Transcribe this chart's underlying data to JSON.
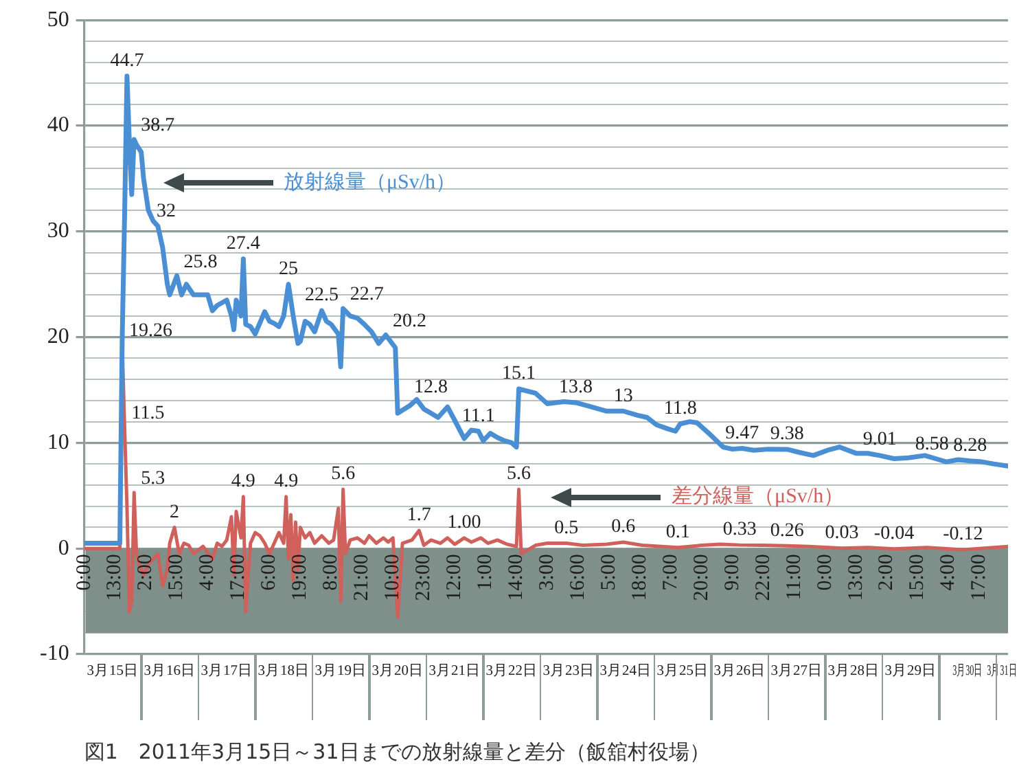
{
  "chart_data": {
    "type": "line",
    "title": "図1　2011年3月15日～31日までの放射線量と差分（飯舘村役場）",
    "xlim": [
      "--03-15T00:00",
      "--03-31T05:00"
    ],
    "xticks": [
      {
        "value": "--03-15T00:00",
        "label": "0:00"
      },
      {
        "value": "--03-15T13:00",
        "label": "13:00"
      },
      {
        "value": "--03-16T02:00",
        "label": "2:00"
      },
      {
        "value": "--03-16T15:00",
        "label": "15:00"
      },
      {
        "value": "--03-17T04:00",
        "label": "4:00"
      },
      {
        "value": "--03-17T17:00",
        "label": "17:00"
      },
      {
        "value": "--03-18T06:00",
        "label": "6:00"
      },
      {
        "value": "--03-18T19:00",
        "label": "19:00"
      },
      {
        "value": "--03-19T08:00",
        "label": "8:00"
      },
      {
        "value": "--03-19T21:00",
        "label": "21:00"
      },
      {
        "value": "--03-20T10:00",
        "label": "10:00"
      },
      {
        "value": "--03-20T23:00",
        "label": "23:00"
      },
      {
        "value": "--03-21T12:00",
        "label": "12:00"
      },
      {
        "value": "--03-22T01:00",
        "label": "1:00"
      },
      {
        "value": "--03-22T14:00",
        "label": "14:00"
      },
      {
        "value": "--03-23T03:00",
        "label": "3:00"
      },
      {
        "value": "--03-23T16:00",
        "label": "16:00"
      },
      {
        "value": "--03-24T05:00",
        "label": "5:00"
      },
      {
        "value": "--03-24T18:00",
        "label": "18:00"
      },
      {
        "value": "--03-25T07:00",
        "label": "7:00"
      },
      {
        "value": "--03-25T20:00",
        "label": "20:00"
      },
      {
        "value": "--03-26T09:00",
        "label": "9:00"
      },
      {
        "value": "--03-26T22:00",
        "label": "22:00"
      },
      {
        "value": "--03-27T11:00",
        "label": "11:00"
      },
      {
        "value": "--03-28T00:00",
        "label": "0:00"
      },
      {
        "value": "--03-28T13:00",
        "label": "13:00"
      },
      {
        "value": "--03-29T02:00",
        "label": "2:00"
      },
      {
        "value": "--03-29T15:00",
        "label": "15:00"
      },
      {
        "value": "--03-30T04:00",
        "label": "4:00"
      },
      {
        "value": "--03-30T17:00",
        "label": "17:00"
      }
    ],
    "x2lim": [
      "--03-15T00:00",
      "--03-31T05:00"
    ],
    "x2ticks": [
      {
        "value": "--03-15T12:00",
        "label": "3月15日"
      },
      {
        "value": "--03-16T12:00",
        "label": "3月16日"
      },
      {
        "value": "--03-17T12:00",
        "label": "3月17日"
      },
      {
        "value": "--03-18T12:00",
        "label": "3月18日"
      },
      {
        "value": "--03-19T12:00",
        "label": "3月19日"
      },
      {
        "value": "--03-20T12:00",
        "label": "3月20日"
      },
      {
        "value": "--03-21T12:00",
        "label": "3月21日"
      },
      {
        "value": "--03-22T12:00",
        "label": "3月22日"
      },
      {
        "value": "--03-23T12:00",
        "label": "3月23日"
      },
      {
        "value": "--03-24T12:00",
        "label": "3月24日"
      },
      {
        "value": "--03-25T12:00",
        "label": "3月25日"
      },
      {
        "value": "--03-26T12:00",
        "label": "3月26日"
      },
      {
        "value": "--03-27T12:00",
        "label": "3月27日"
      },
      {
        "value": "--03-28T12:00",
        "label": "3月28日"
      },
      {
        "value": "--03-29T12:00",
        "label": "3月29日"
      },
      {
        "value": "--03-30T12:00",
        "label": "3月30日"
      },
      {
        "value": "--03-31T02:30",
        "label": "3月31日"
      }
    ],
    "ylim": [
      -10,
      50
    ],
    "yticks": [
      -10,
      {
        "value": -8,
        "label": null
      },
      {
        "value": -6,
        "label": null
      },
      {
        "value": -4,
        "label": null
      },
      {
        "value": -2,
        "label": null
      },
      0,
      {
        "value": 2,
        "label": null
      },
      {
        "value": 4,
        "label": null
      },
      {
        "value": 6,
        "label": null
      },
      {
        "value": 8,
        "label": null
      },
      10,
      {
        "value": 12,
        "label": null
      },
      {
        "value": 14,
        "label": null
      },
      {
        "value": 16,
        "label": null
      },
      {
        "value": 18,
        "label": null
      },
      20,
      {
        "value": 22,
        "label": null
      },
      {
        "value": 24,
        "label": null
      },
      {
        "value": 26,
        "label": null
      },
      {
        "value": 28,
        "label": null
      },
      30,
      {
        "value": 32,
        "label": null
      },
      {
        "value": 34,
        "label": null
      },
      {
        "value": 36,
        "label": null
      },
      {
        "value": 38,
        "label": null
      },
      40,
      {
        "value": 42,
        "label": null
      },
      {
        "value": 44,
        "label": null
      },
      {
        "value": 46,
        "label": null
      },
      {
        "value": 48,
        "label": null
      },
      50
    ],
    "grid": "y",
    "legend": false,
    "bands": [
      {
        "axis": "y",
        "from": -8,
        "to": 0,
        "color": "#7f908a"
      }
    ],
    "series": [
      {
        "name": "放射線量（μSv/h）",
        "color": "#4a8fd3",
        "x": [
          "--03-15T00:00",
          "--03-15T15:00",
          "--03-15T16:00",
          "--03-15T17:00",
          "--03-15T18:00",
          "--03-15T19:00",
          "--03-15T20:00",
          "--03-15T21:00",
          "--03-15T22:00",
          "--03-16T00:00",
          "--03-16T01:00",
          "--03-16T03:00",
          "--03-16T05:00",
          "--03-16T07:00",
          "--03-16T09:00",
          "--03-16T11:00",
          "--03-16T12:00",
          "--03-16T15:00",
          "--03-16T17:00",
          "--03-16T19:00",
          "--03-16T22:00",
          "--03-17T04:00",
          "--03-17T06:00",
          "--03-17T08:00",
          "--03-17T12:00",
          "--03-17T14:00",
          "--03-17T15:00",
          "--03-17T16:00",
          "--03-17T18:00",
          "--03-17T19:00",
          "--03-17T20:00",
          "--03-17T22:00",
          "--03-18T00:00",
          "--03-18T04:00",
          "--03-18T06:00",
          "--03-18T08:00",
          "--03-18T10:00",
          "--03-18T12:00",
          "--03-18T14:00",
          "--03-18T15:00",
          "--03-18T16:00",
          "--03-18T18:00",
          "--03-18T19:00",
          "--03-18T21:00",
          "--03-18T23:00",
          "--03-19T01:00",
          "--03-19T04:00",
          "--03-19T06:00",
          "--03-19T08:00",
          "--03-19T11:00",
          "--03-19T12:00",
          "--03-19T13:00",
          "--03-19T16:00",
          "--03-19T19:00",
          "--03-19T22:00",
          "--03-20T01:00",
          "--03-20T04:00",
          "--03-20T07:00",
          "--03-20T09:00",
          "--03-20T11:00",
          "--03-20T12:00",
          "--03-20T17:00",
          "--03-20T20:00",
          "--03-20T23:00",
          "--03-21T02:00",
          "--03-21T05:00",
          "--03-21T09:00",
          "--03-21T13:00",
          "--03-21T16:00",
          "--03-21T19:00",
          "--03-21T22:00",
          "--03-22T00:00",
          "--03-22T03:00",
          "--03-22T06:00",
          "--03-22T09:00",
          "--03-22T12:00",
          "--03-22T14:00",
          "--03-22T15:00",
          "--03-22T22:00",
          "--03-23T03:00",
          "--03-23T10:00",
          "--03-23T15:00",
          "--03-23T20:00",
          "--03-24T04:00",
          "--03-24T11:00",
          "--03-24T17:00",
          "--03-24T21:00",
          "--03-25T01:00",
          "--03-25T06:00",
          "--03-25T09:00",
          "--03-25T11:00",
          "--03-25T15:00",
          "--03-25T18:00",
          "--03-25T23:00",
          "--03-26T05:00",
          "--03-26T09:00",
          "--03-26T13:00",
          "--03-26T18:00",
          "--03-27T00:00",
          "--03-27T08:00",
          "--03-27T13:00",
          "--03-27T19:00",
          "--03-28T01:00",
          "--03-28T06:00",
          "--03-28T13:00",
          "--03-28T18:00",
          "--03-28T23:00",
          "--03-29T05:00",
          "--03-29T11:00",
          "--03-29T18:00",
          "--03-30T00:00",
          "--03-30T03:00",
          "--03-30T08:00",
          "--03-30T13:00",
          "--03-30T18:00",
          "--03-30T23:00",
          "--03-31T05:00"
        ],
        "values": [
          0.5,
          0.5,
          20,
          31.5,
          44.7,
          38.5,
          33.5,
          38.7,
          38.2,
          37.5,
          35,
          32,
          31,
          30.5,
          28.5,
          25,
          24,
          25.8,
          24,
          25,
          24,
          24,
          22.5,
          23,
          23.5,
          22,
          20.7,
          23.5,
          22,
          27.4,
          21.2,
          21,
          20.3,
          22.4,
          21.5,
          21.3,
          21,
          22,
          25,
          23.5,
          22,
          19.4,
          19.6,
          21.5,
          21.2,
          20.5,
          22.5,
          21.5,
          21.2,
          20.3,
          17.2,
          22.7,
          22,
          21.8,
          21.2,
          20.5,
          19.4,
          20.2,
          19.6,
          19,
          12.8,
          13.5,
          14.1,
          13.2,
          12.8,
          12.4,
          13.4,
          11.7,
          10.4,
          11.2,
          11.1,
          10.2,
          10.9,
          10.5,
          10.2,
          10,
          9.6,
          15.1,
          14.7,
          13.7,
          13.9,
          13.8,
          13.5,
          13,
          13,
          12.6,
          12.4,
          11.7,
          11.3,
          11.1,
          11.8,
          12,
          11.9,
          10.9,
          9.6,
          9.4,
          9.47,
          9.3,
          9.4,
          9.38,
          9.1,
          8.8,
          9.3,
          9.6,
          9.01,
          9,
          8.8,
          8.5,
          8.58,
          8.8,
          8.4,
          8.2,
          8.4,
          8.28,
          8.2,
          8,
          7.8
        ],
        "value_labels": [
          null,
          null,
          null,
          null,
          "44.7",
          null,
          null,
          "38.7",
          null,
          null,
          null,
          "32",
          null,
          null,
          null,
          null,
          null,
          "25.8",
          null,
          null,
          null,
          null,
          null,
          null,
          null,
          null,
          null,
          null,
          null,
          "27.4",
          null,
          null,
          null,
          null,
          null,
          null,
          null,
          null,
          "25",
          null,
          null,
          null,
          null,
          null,
          null,
          null,
          "22.5",
          null,
          null,
          null,
          null,
          "22.7",
          null,
          null,
          null,
          null,
          null,
          "20.2",
          null,
          null,
          null,
          null,
          null,
          null,
          "12.8",
          null,
          null,
          null,
          null,
          null,
          "11.1",
          null,
          null,
          null,
          null,
          null,
          null,
          "15.1",
          null,
          null,
          null,
          "13.8",
          null,
          null,
          "13",
          null,
          null,
          null,
          null,
          null,
          "11.8",
          null,
          null,
          null,
          null,
          null,
          "9.47",
          null,
          null,
          "9.38",
          null,
          null,
          null,
          null,
          "9.01",
          null,
          null,
          null,
          "8.58",
          null,
          null,
          null,
          null,
          "8.28",
          null,
          null,
          null
        ]
      },
      {
        "name": "差分線量（μSv/h）",
        "color": "#d0605b",
        "x": [
          "--03-15T00:00",
          "--03-15T15:00",
          "--03-15T16:00",
          "--03-15T17:00",
          "--03-15T18:00",
          "--03-15T19:00",
          "--03-15T20:00",
          "--03-15T21:00",
          "--03-15T22:00",
          "--03-15T23:00",
          "--03-16T01:00",
          "--03-16T03:00",
          "--03-16T05:00",
          "--03-16T07:00",
          "--03-16T09:00",
          "--03-16T11:00",
          "--03-16T12:00",
          "--03-16T14:00",
          "--03-16T16:00",
          "--03-16T18:00",
          "--03-16T20:00",
          "--03-16T22:00",
          "--03-17T02:00",
          "--03-17T06:00",
          "--03-17T08:00",
          "--03-17T10:00",
          "--03-17T12:00",
          "--03-17T14:00",
          "--03-17T15:00",
          "--03-17T16:00",
          "--03-17T18:00",
          "--03-17T19:00",
          "--03-17T20:00",
          "--03-17T22:00",
          "--03-18T00:00",
          "--03-18T02:00",
          "--03-18T04:00",
          "--03-18T06:00",
          "--03-18T08:00",
          "--03-18T10:00",
          "--03-18T12:00",
          "--03-18T13:00",
          "--03-18T14:00",
          "--03-18T15:00",
          "--03-18T16:00",
          "--03-18T17:00",
          "--03-18T18:00",
          "--03-18T19:00",
          "--03-18T21:00",
          "--03-18T23:00",
          "--03-19T01:00",
          "--03-19T04:00",
          "--03-19T07:00",
          "--03-19T09:00",
          "--03-19T11:00",
          "--03-19T12:00",
          "--03-19T13:00",
          "--03-19T14:00",
          "--03-19T16:00",
          "--03-19T19:00",
          "--03-19T22:00",
          "--03-20T00:00",
          "--03-20T03:00",
          "--03-20T06:00",
          "--03-20T08:00",
          "--03-20T10:00",
          "--03-20T12:00",
          "--03-20T14:00",
          "--03-20T18:00",
          "--03-20T21:00",
          "--03-20T23:00",
          "--03-21T02:00",
          "--03-21T06:00",
          "--03-21T09:00",
          "--03-21T12:00",
          "--03-21T16:00",
          "--03-21T19:00",
          "--03-21T23:00",
          "--03-22T02:00",
          "--03-22T06:00",
          "--03-22T10:00",
          "--03-22T14:00",
          "--03-22T15:00",
          "--03-22T16:00",
          "--03-22T22:00",
          "--03-23T03:00",
          "--03-23T11:00",
          "--03-23T18:00",
          "--03-24T04:00",
          "--03-24T11:00",
          "--03-24T19:00",
          "--03-25T03:00",
          "--03-25T10:00",
          "--03-25T20:00",
          "--03-26T04:00",
          "--03-26T12:00",
          "--03-26T22:00",
          "--03-27T08:00",
          "--03-27T17:00",
          "--03-28T07:00",
          "--03-28T18:00",
          "--03-29T05:00",
          "--03-29T19:00",
          "--03-30T10:00",
          "--03-31T05:00"
        ],
        "values": [
          0,
          0,
          19.26,
          11.5,
          4,
          -6,
          -5,
          5.3,
          -0.5,
          -1.5,
          -2.5,
          -1.5,
          -1,
          -0.5,
          -3.5,
          -2,
          0.5,
          2,
          -0.5,
          0.5,
          0.3,
          -0.5,
          0.2,
          -1,
          0.5,
          0.2,
          0.8,
          3,
          -2.5,
          3.5,
          1,
          4.9,
          -6,
          0.5,
          1.5,
          1.2,
          0.5,
          -0.5,
          0.5,
          1.5,
          0.5,
          4.9,
          -1,
          3.2,
          -3,
          2.5,
          -2,
          2,
          1,
          1.5,
          0.5,
          1.2,
          0.5,
          0.8,
          3.8,
          -5,
          5.6,
          -0.5,
          0.8,
          1,
          0.5,
          1.2,
          0.5,
          1,
          0.6,
          1,
          -6.5,
          0.5,
          0.8,
          1.7,
          0.3,
          0.8,
          0.5,
          1,
          0.4,
          1,
          0.6,
          1,
          0.5,
          0.8,
          0.4,
          0.2,
          5.6,
          -0.5,
          0.3,
          0.5,
          0.5,
          0.3,
          0.4,
          0.6,
          0.3,
          0.2,
          0.1,
          0.3,
          0.4,
          0.33,
          0.3,
          0.26,
          0.2,
          0.03,
          0.1,
          -0.04,
          0.1,
          -0.12,
          0.2
        ],
        "value_labels": [
          null,
          null,
          "19.26",
          "11.5",
          null,
          null,
          null,
          "5.3",
          null,
          null,
          null,
          null,
          null,
          null,
          null,
          null,
          null,
          "2",
          null,
          null,
          null,
          null,
          null,
          null,
          null,
          null,
          null,
          null,
          null,
          null,
          null,
          "4.9",
          null,
          null,
          null,
          null,
          null,
          null,
          null,
          null,
          null,
          "4.9",
          null,
          null,
          null,
          null,
          null,
          null,
          null,
          null,
          null,
          null,
          null,
          null,
          null,
          null,
          "5.6",
          null,
          null,
          null,
          null,
          null,
          null,
          null,
          null,
          null,
          null,
          null,
          null,
          "1.7",
          null,
          null,
          null,
          null,
          null,
          "1.00",
          null,
          null,
          null,
          null,
          null,
          null,
          "5.6",
          null,
          null,
          null,
          "0.5",
          null,
          null,
          "0.6",
          null,
          null,
          "0.1",
          null,
          null,
          "0.33",
          null,
          "0.26",
          null,
          "0.03",
          null,
          "-0.04",
          null,
          "-0.12",
          null
        ]
      }
    ]
  }
}
